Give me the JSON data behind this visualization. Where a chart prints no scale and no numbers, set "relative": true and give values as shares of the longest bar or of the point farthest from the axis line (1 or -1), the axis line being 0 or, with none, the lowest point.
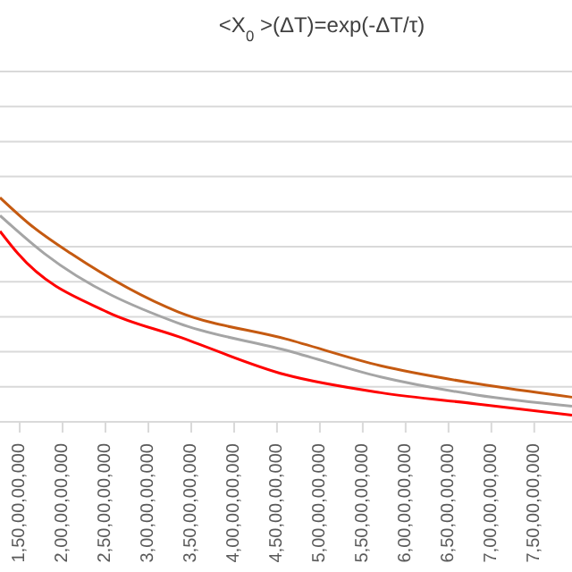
{
  "chart_data": {
    "type": "line",
    "title": "<X$_{0}$>(ΔT)=exp(-ΔT/τ)",
    "relative": true,
    "grid": "y",
    "marker": "none",
    "line_style": "solid",
    "xlim": [
      1270000000,
      7940000000
    ],
    "xticks": [
      {
        "value": 1500000000,
        "label": "1,50,00,00,000"
      },
      {
        "value": 2000000000,
        "label": "2,00,00,00,000"
      },
      {
        "value": 2500000000,
        "label": "2,50,00,00,000"
      },
      {
        "value": 3000000000,
        "label": "3,00,00,00,000"
      },
      {
        "value": 3500000000,
        "label": "3,50,00,00,000"
      },
      {
        "value": 4000000000,
        "label": "4,00,00,00,000"
      },
      {
        "value": 4500000000,
        "label": "4,50,00,00,000"
      },
      {
        "value": 5000000000,
        "label": "5,00,00,00,000"
      },
      {
        "value": 5500000000,
        "label": "5,50,00,00,000"
      },
      {
        "value": 6000000000,
        "label": "6,00,00,00,000"
      },
      {
        "value": 6500000000,
        "label": "6,50,00,00,000"
      },
      {
        "value": 7000000000,
        "label": "7,00,00,00,000"
      },
      {
        "value": 7500000000,
        "label": "7,50,00,00,000"
      }
    ],
    "series": [
      {
        "color": "#c55a11",
        "x": [
          1270000000,
          1620000000,
          2100000000,
          3350000000,
          4600000000,
          5710000000,
          6830000000,
          7940000000
        ],
        "values": [
          1,
          0.88,
          0.75,
          0.49,
          0.37,
          0.25,
          0.17,
          0.11
        ]
      },
      {
        "color": "#a5a5a5",
        "x": [
          1270000000,
          1790000000,
          3350000000,
          4600000000,
          5710000000,
          6830000000,
          7940000000
        ],
        "values": [
          0.92,
          0.75,
          0.44,
          0.32,
          0.2,
          0.12,
          0.07
        ]
      },
      {
        "color": "#ff0000",
        "x": [
          1270000000,
          1480000000,
          2520000000,
          3350000000,
          4600000000,
          5710000000,
          6830000000,
          7940000000
        ],
        "values": [
          0.85,
          0.75,
          0.49,
          0.38,
          0.21,
          0.13,
          0.08,
          0.03
        ]
      }
    ]
  }
}
